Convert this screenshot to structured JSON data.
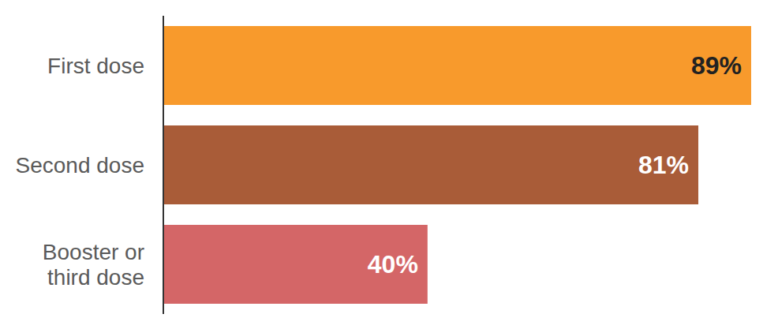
{
  "chart_data": {
    "type": "bar",
    "orientation": "horizontal",
    "categories": [
      "First dose",
      "Second dose",
      "Booster or third dose"
    ],
    "values": [
      89,
      81,
      40
    ],
    "value_labels": [
      "89%",
      "81%",
      "40%"
    ],
    "colors": [
      "#f89a2c",
      "#a95c38",
      "#d46667"
    ],
    "xlim": [
      0,
      89
    ],
    "data_labels": true,
    "tick_labels": "y",
    "grid": false
  }
}
